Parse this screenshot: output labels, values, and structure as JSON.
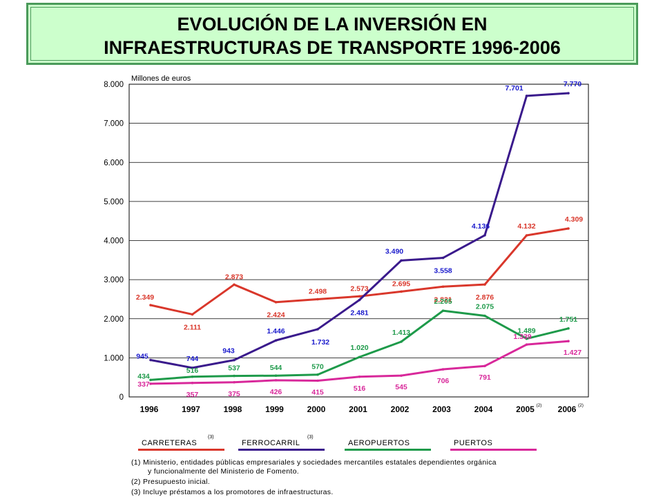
{
  "title": {
    "line1": "EVOLUCIÓN DE LA INVERSIÓN EN",
    "line2": "INFRAESTRUCTURAS DE TRANSPORTE 1996-2006"
  },
  "chart_data": {
    "type": "line",
    "ylabel": "Millones de euros",
    "ylim": [
      0,
      8000
    ],
    "yticks": [
      0,
      1000,
      2000,
      3000,
      4000,
      5000,
      6000,
      7000,
      8000
    ],
    "ytick_labels": [
      "0",
      "1.000",
      "2.000",
      "3.000",
      "4.000",
      "5.000",
      "6.000",
      "7.000",
      "8.000"
    ],
    "categories": [
      "1996",
      "1997",
      "1998",
      "1999",
      "2000",
      "2001",
      "2002",
      "2003",
      "2004",
      "2005",
      "2006"
    ],
    "category_sups": [
      "",
      "",
      "",
      "",
      "",
      "",
      "",
      "",
      "",
      "(2)",
      "(2)"
    ],
    "grid": "horizontal",
    "legend_position": "bottom",
    "series": [
      {
        "name": "CARRETERAS",
        "sup": "(3)",
        "color": "#d9372b",
        "values": [
          2349,
          2111,
          2873,
          2424,
          2498,
          2573,
          2695,
          2821,
          2876,
          4132,
          4309
        ],
        "labels": [
          "2.349",
          "2.111",
          "2.873",
          "2.424",
          "2.498",
          "2.573",
          "2.695",
          "2.821",
          "2.876",
          "4.132",
          "4.309"
        ]
      },
      {
        "name": "FERROCARRIL",
        "sup": "(3)",
        "color": "#3a1a8c",
        "label_color": "#1a1acc",
        "values": [
          945,
          744,
          943,
          1446,
          1732,
          2481,
          3490,
          3558,
          4136,
          7701,
          7770
        ],
        "labels": [
          "945",
          "744",
          "943",
          "1.446",
          "1.732",
          "2.481",
          "3.490",
          "3.558",
          "4.136",
          "7.701",
          "7.770"
        ]
      },
      {
        "name": "AEROPUERTOS",
        "sup": "",
        "color": "#1e9a4a",
        "values": [
          434,
          516,
          537,
          544,
          570,
          1020,
          1413,
          2205,
          2075,
          1489,
          1751
        ],
        "labels": [
          "434",
          "516",
          "537",
          "544",
          "570",
          "1.020",
          "1.413",
          "2.205",
          "2.075",
          "1.489",
          "1.751"
        ]
      },
      {
        "name": "PUERTOS",
        "sup": "",
        "color": "#d8289a",
        "values": [
          337,
          357,
          375,
          426,
          415,
          516,
          545,
          706,
          791,
          1339,
          1427
        ],
        "labels": [
          "337",
          "357",
          "375",
          "426",
          "415",
          "516",
          "545",
          "706",
          "791",
          "1.339",
          "1.427"
        ]
      }
    ]
  },
  "footnotes": {
    "n1a": "(1) Ministerio, entidades públicas empresariales y sociedades mercantiles estatales dependientes orgánica",
    "n1b": "y funcionalmente del Ministerio de Fomento.",
    "n2": "(2) Presupuesto inicial.",
    "n3": "(3) Incluye préstamos a los promotores de infraestructuras."
  }
}
